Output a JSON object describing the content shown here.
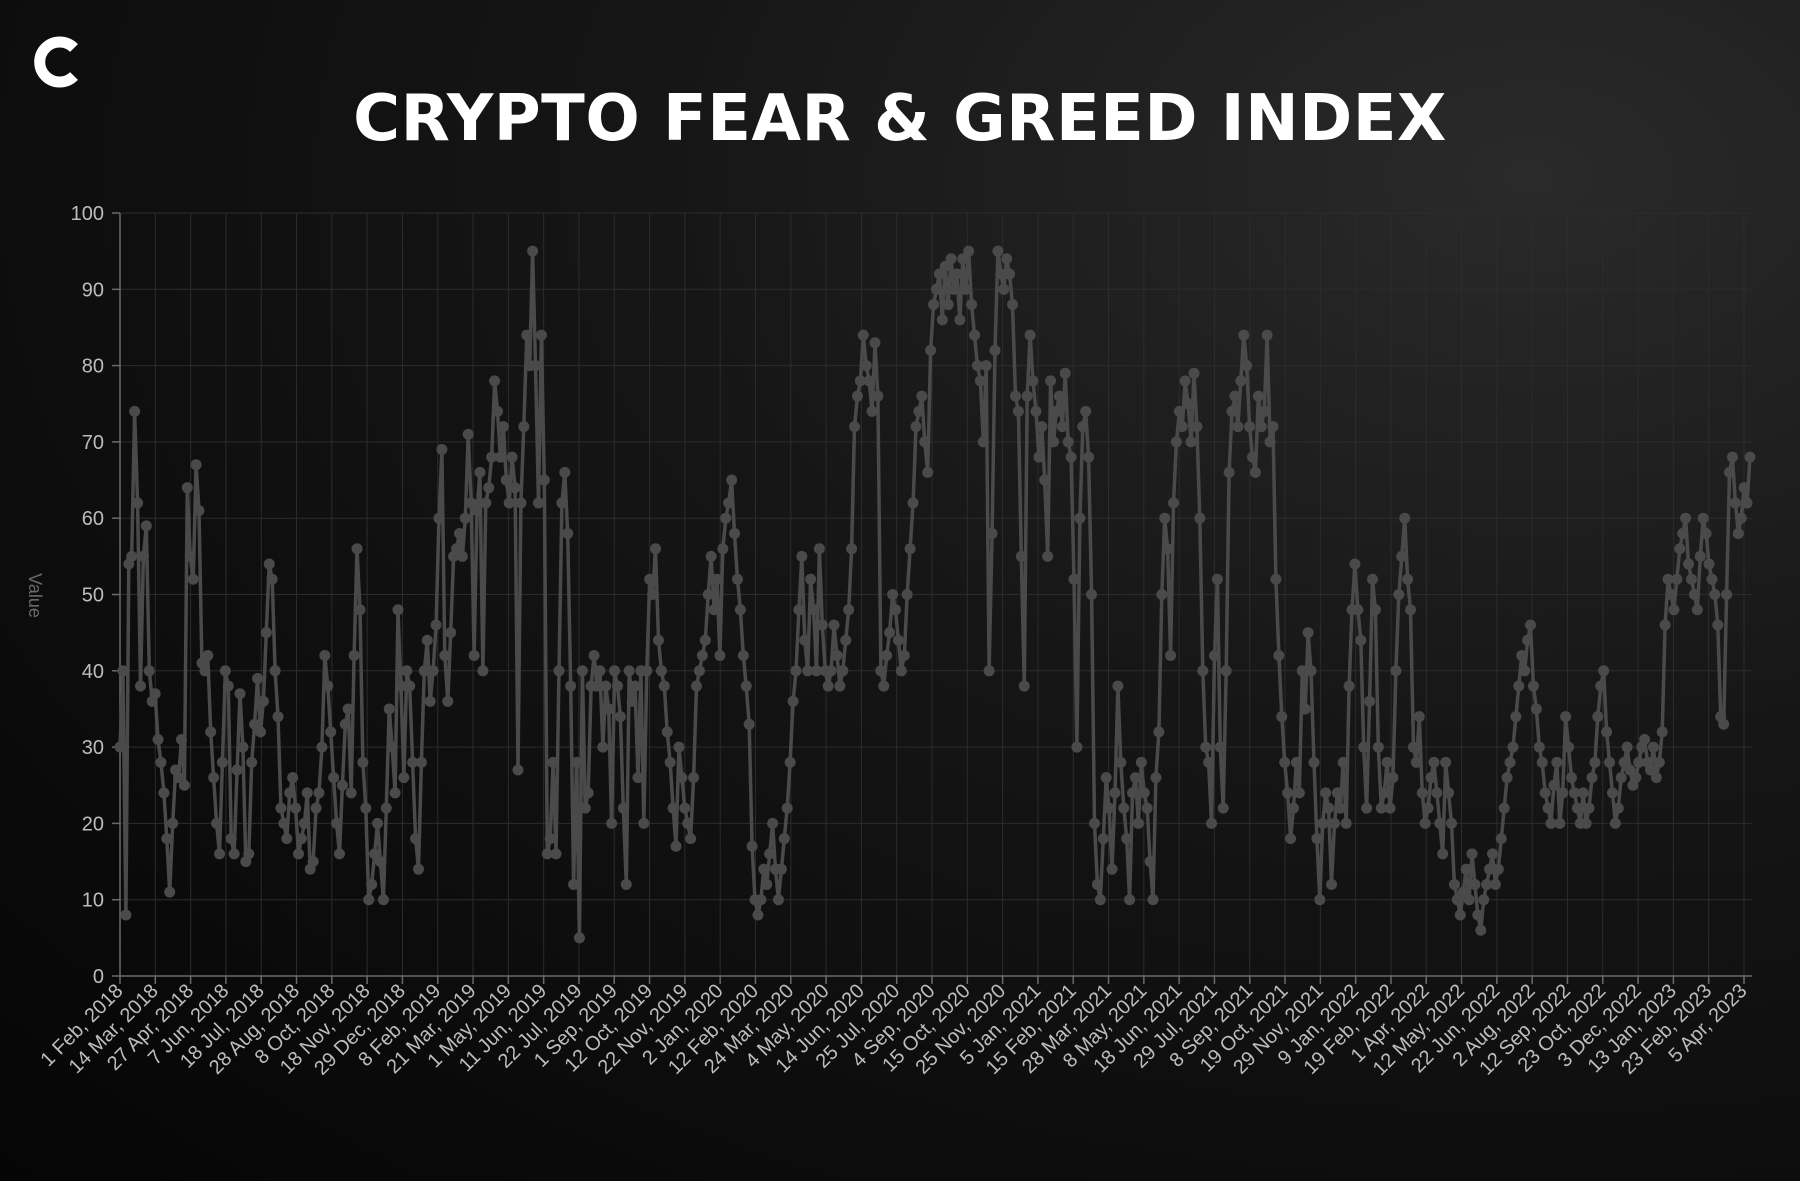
{
  "title": "CRYPTO FEAR & GREED INDEX",
  "logo": "coin-logo-icon",
  "colors": {
    "background": "#0b0b0b",
    "line": "#4a4a4a",
    "grid": "#2c2c2c",
    "title": "#ffffff",
    "tick": "#bdbdbd"
  },
  "chart_data": {
    "type": "line",
    "title": "CRYPTO FEAR & GREED INDEX",
    "xlabel": "",
    "ylabel": "Value",
    "ylim": [
      0,
      100
    ],
    "yticks": [
      0,
      10,
      20,
      30,
      40,
      50,
      60,
      70,
      80,
      90,
      100
    ],
    "grid": true,
    "x_tick_labels": [
      "1 Feb, 2018",
      "14 Mar, 2018",
      "27 Apr, 2018",
      "7 Jun, 2018",
      "18 Jul, 2018",
      "28 Aug, 2018",
      "8 Oct, 2018",
      "18 Nov, 2018",
      "29 Dec, 2018",
      "8 Feb, 2019",
      "21 Mar, 2019",
      "1 May, 2019",
      "11 Jun, 2019",
      "22 Jul, 2019",
      "1 Sep, 2019",
      "12 Oct, 2019",
      "22 Nov, 2019",
      "2 Jan, 2020",
      "12 Feb, 2020",
      "24 Mar, 2020",
      "4 May, 2020",
      "14 Jun, 2020",
      "25 Jul, 2020",
      "4 Sep, 2020",
      "15 Oct, 2020",
      "25 Nov, 2020",
      "5 Jan, 2021",
      "15 Feb, 2021",
      "28 Mar, 2021",
      "8 May, 2021",
      "18 Jun, 2021",
      "29 Jul, 2021",
      "8 Sep, 2021",
      "19 Oct, 2021",
      "29 Nov, 2021",
      "9 Jan, 2022",
      "19 Feb, 2022",
      "1 Apr, 2022",
      "12 May, 2022",
      "22 Jun, 2022",
      "2 Aug, 2022",
      "12 Sep, 2022",
      "23 Oct, 2022",
      "3 Dec, 2022",
      "13 Jan, 2023",
      "23 Feb, 2023",
      "5 Apr, 2023"
    ],
    "series": [
      {
        "name": "Value",
        "values": [
          30,
          40,
          8,
          54,
          55,
          74,
          62,
          38,
          55,
          59,
          40,
          36,
          37,
          31,
          28,
          24,
          18,
          11,
          20,
          27,
          26,
          31,
          25,
          64,
          55,
          52,
          67,
          61,
          41,
          40,
          42,
          32,
          26,
          20,
          16,
          28,
          40,
          38,
          18,
          16,
          27,
          37,
          30,
          15,
          16,
          28,
          33,
          39,
          32,
          36,
          45,
          54,
          52,
          40,
          34,
          22,
          20,
          18,
          24,
          26,
          22,
          16,
          18,
          20,
          24,
          14,
          15,
          22,
          24,
          30,
          42,
          38,
          32,
          26,
          20,
          16,
          25,
          33,
          35,
          24,
          42,
          56,
          48,
          28,
          22,
          10,
          12,
          16,
          20,
          15,
          10,
          22,
          35,
          30,
          24,
          48,
          38,
          26,
          40,
          38,
          28,
          18,
          14,
          28,
          40,
          44,
          36,
          40,
          46,
          60,
          69,
          42,
          36,
          45,
          55,
          56,
          58,
          55,
          60,
          71,
          62,
          42,
          61,
          66,
          40,
          62,
          64,
          68,
          78,
          74,
          68,
          72,
          65,
          62,
          68,
          64,
          27,
          62,
          72,
          84,
          80,
          95,
          80,
          62,
          84,
          65,
          16,
          18,
          28,
          16,
          40,
          62,
          66,
          58,
          38,
          12,
          28,
          5,
          40,
          22,
          24,
          38,
          42,
          38,
          40,
          30,
          38,
          35,
          20,
          40,
          38,
          34,
          22,
          12,
          40,
          36,
          38,
          26,
          40,
          20,
          40,
          52,
          50,
          56,
          44,
          40,
          38,
          32,
          28,
          22,
          17,
          30,
          26,
          22,
          20,
          18,
          26,
          38,
          40,
          42,
          44,
          50,
          55,
          48,
          52,
          42,
          56,
          60,
          62,
          65,
          58,
          52,
          48,
          42,
          38,
          33,
          17,
          10,
          8,
          10,
          14,
          12,
          16,
          20,
          14,
          10,
          14,
          18,
          22,
          28,
          36,
          40,
          48,
          55,
          44,
          40,
          52,
          48,
          40,
          56,
          46,
          40,
          38,
          40,
          46,
          42,
          38,
          40,
          44,
          48,
          56,
          72,
          76,
          78,
          84,
          80,
          78,
          74,
          83,
          76,
          40,
          38,
          42,
          45,
          50,
          48,
          44,
          40,
          42,
          50,
          56,
          62,
          72,
          74,
          76,
          70,
          66,
          82,
          88,
          90,
          92,
          86,
          93,
          88,
          94,
          90,
          92,
          86,
          94,
          90,
          95,
          88,
          84,
          80,
          78,
          70,
          80,
          40,
          58,
          82,
          95,
          92,
          90,
          94,
          92,
          88,
          76,
          74,
          55,
          38,
          76,
          84,
          78,
          74,
          68,
          72,
          65,
          55,
          78,
          70,
          74,
          76,
          72,
          79,
          70,
          68,
          52,
          30,
          60,
          72,
          74,
          68,
          50,
          20,
          12,
          10,
          18,
          26,
          22,
          14,
          24,
          38,
          28,
          22,
          18,
          10,
          24,
          26,
          20,
          28,
          24,
          22,
          15,
          10,
          26,
          32,
          50,
          60,
          56,
          42,
          62,
          70,
          74,
          72,
          78,
          75,
          70,
          79,
          72,
          60,
          40,
          30,
          28,
          20,
          42,
          52,
          30,
          22,
          40,
          66,
          74,
          76,
          72,
          78,
          84,
          80,
          72,
          68,
          66,
          76,
          72,
          74,
          84,
          70,
          72,
          52,
          42,
          34,
          28,
          24,
          18,
          22,
          28,
          24,
          40,
          35,
          45,
          40,
          28,
          18,
          10,
          20,
          24,
          22,
          12,
          20,
          24,
          22,
          28,
          20,
          38,
          48,
          54,
          48,
          44,
          30,
          22,
          36,
          52,
          48,
          30,
          22,
          24,
          28,
          22,
          26,
          40,
          50,
          55,
          60,
          52,
          48,
          30,
          28,
          34,
          24,
          20,
          22,
          26,
          28,
          24,
          20,
          16,
          28,
          24,
          20,
          12,
          10,
          8,
          11,
          14,
          10,
          16,
          12,
          8,
          6,
          10,
          12,
          14,
          16,
          12,
          14,
          18,
          22,
          26,
          28,
          30,
          34,
          38,
          42,
          40,
          44,
          46,
          38,
          35,
          30,
          28,
          24,
          22,
          20,
          25,
          28,
          20,
          24,
          34,
          30,
          26,
          24,
          22,
          20,
          24,
          20,
          22,
          26,
          28,
          34,
          38,
          40,
          32,
          28,
          24,
          20,
          22,
          26,
          28,
          30,
          27,
          25,
          26,
          28,
          30,
          31,
          28,
          27,
          30,
          26,
          28,
          32,
          46,
          52,
          50,
          48,
          52,
          56,
          58,
          60,
          54,
          52,
          50,
          48,
          55,
          60,
          58,
          54,
          52,
          50,
          46,
          34,
          33,
          50,
          66,
          68,
          62,
          58,
          60,
          64,
          62,
          68
        ]
      }
    ]
  }
}
